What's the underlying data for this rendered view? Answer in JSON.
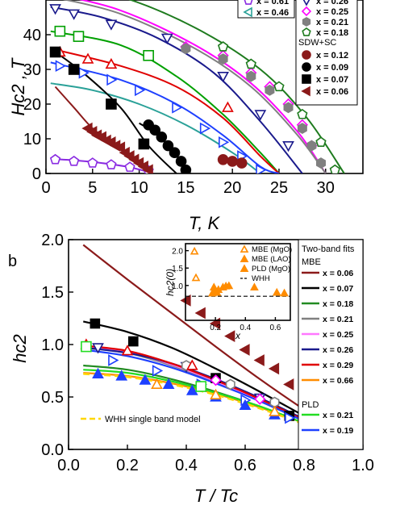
{
  "chart_data": [
    {
      "type": "scatter",
      "panel_label": "",
      "xlabel": "T, K",
      "ylabel": "Hc2 , T",
      "xlim": [
        0,
        34
      ],
      "ylim": [
        0,
        50
      ],
      "xticks": [
        0,
        5,
        10,
        15,
        20,
        25,
        30
      ],
      "yticks": [
        0,
        10,
        20,
        30,
        40
      ],
      "tick_labels_x": [
        "0",
        "5",
        "10",
        "15",
        "20",
        "25",
        "30"
      ],
      "tick_labels_y": [
        "0",
        "10",
        "20",
        "30",
        "40"
      ],
      "legend_group_label": "SDW+SC",
      "series": [
        {
          "name": "x = 0.61",
          "color": "#8a2be2",
          "marker": "pentagon-open",
          "x": [
            1,
            3,
            5,
            7,
            9,
            11
          ],
          "y": [
            4,
            3.5,
            3,
            2.5,
            1.8,
            0.8
          ],
          "fit_x": [
            0.5,
            3,
            6,
            9,
            11.5
          ],
          "fit_y": [
            4.2,
            3.8,
            3,
            1.8,
            0
          ]
        },
        {
          "name": "x = 0.46",
          "color": "#2aa198",
          "marker": "triangle-left-open",
          "x": [],
          "y": [],
          "fit_x": [
            0.5,
            5,
            10,
            15,
            20,
            23
          ],
          "fit_y": [
            26,
            24,
            20,
            14,
            6,
            0
          ]
        },
        {
          "name": "x = 0.26",
          "color": "#1a1a8c",
          "marker": "triangle-down-open",
          "x": [
            1,
            3,
            7,
            13,
            19,
            23,
            26
          ],
          "y": [
            47.5,
            46,
            43,
            39,
            28,
            17,
            8
          ],
          "fit_x": [
            0.5,
            6,
            12,
            18,
            23,
            27.5
          ],
          "fit_y": [
            48,
            45,
            39,
            29,
            15,
            0
          ]
        },
        {
          "name": "x = 0.25",
          "color": "#ff00ff",
          "marker": "diamond-open",
          "x": [
            15,
            19,
            22,
            24,
            26,
            27.5,
            28.5
          ],
          "y": [
            36.5,
            34,
            29,
            25,
            20,
            14,
            8
          ],
          "fit_x": [
            0.5,
            8,
            16,
            22,
            27,
            30
          ],
          "fit_y": [
            52,
            47,
            37,
            26,
            12,
            0
          ]
        },
        {
          "name": "x = 0.21",
          "color": "#808080",
          "marker": "hexagon",
          "x": [
            15,
            19,
            22,
            24,
            26,
            27.5,
            28.5,
            29.5
          ],
          "y": [
            36,
            33,
            28,
            24,
            19,
            13,
            8,
            3
          ],
          "fit_x": [
            0.5,
            8,
            16,
            22,
            27,
            30
          ],
          "fit_y": [
            51,
            46,
            36,
            25,
            11,
            0
          ]
        },
        {
          "name": "x = 0.18",
          "color": "#1e7b1e",
          "marker": "pentagon-open",
          "x": [
            19,
            22,
            25,
            27.5,
            29.5,
            31
          ],
          "y": [
            36.5,
            31.5,
            25,
            17,
            9,
            1
          ],
          "fit_x": [
            0.5,
            8,
            16,
            23,
            28,
            32
          ],
          "fit_y": [
            55,
            51,
            42,
            30,
            16,
            0
          ]
        },
        {
          "name": "",
          "color": "#00a000",
          "marker": "square-open",
          "x": [
            1.5,
            3.5,
            11
          ],
          "y": [
            41,
            39.5,
            34
          ],
          "fit_x": [
            0.5,
            8,
            14,
            19,
            23,
            25
          ],
          "fit_y": [
            41,
            37,
            28,
            17,
            6,
            0
          ]
        },
        {
          "name": "",
          "color": "#e00000",
          "marker": "triangle-up-open",
          "x": [
            1.5,
            4.5,
            7,
            19.5
          ],
          "y": [
            35,
            33,
            31.5,
            19
          ],
          "fit_x": [
            0.5,
            8,
            14,
            19,
            23,
            25
          ],
          "fit_y": [
            36,
            31,
            25,
            16,
            5,
            0
          ]
        },
        {
          "name": "",
          "color": "#1e40ff",
          "marker": "triangle-right-open",
          "x": [
            1.5,
            4,
            7,
            10,
            14,
            17,
            19,
            21,
            23
          ],
          "y": [
            31,
            29,
            27,
            24,
            19,
            13,
            9,
            5,
            1
          ],
          "fit_x": [
            0.5,
            8,
            14,
            19,
            23,
            25
          ],
          "fit_y": [
            32,
            27,
            20,
            11,
            2,
            0
          ]
        },
        {
          "name": "x = 0.12",
          "color": "#8b1a1a",
          "marker": "circle",
          "x": [
            19,
            20,
            21
          ],
          "y": [
            4,
            3.5,
            3
          ],
          "fit_x": [],
          "fit_y": []
        },
        {
          "name": "x = 0.09",
          "color": "#000000",
          "marker": "circle",
          "x": [
            11,
            11.7,
            12.4,
            13.1,
            13.8,
            14.5,
            15
          ],
          "y": [
            14,
            12.5,
            10.5,
            8,
            6,
            3.5,
            1
          ],
          "fit_x": [
            10,
            12,
            14,
            15.5
          ],
          "fit_y": [
            14.5,
            11,
            5,
            0
          ]
        },
        {
          "name": "x = 0.07",
          "color": "#000000",
          "marker": "square",
          "x": [
            1,
            3,
            7,
            10.5
          ],
          "y": [
            35,
            30,
            20,
            8.5
          ],
          "fit_x": [
            0.5,
            4,
            8,
            11,
            14
          ],
          "fit_y": [
            36,
            29,
            19,
            8,
            0
          ]
        },
        {
          "name": "x = 0.06",
          "color": "#8b1a1a",
          "marker": "triangle-left",
          "x": [
            4.5,
            5,
            5.5,
            6,
            6.5,
            7,
            7.5,
            8,
            8.5,
            9,
            9.5,
            10,
            10.5,
            11
          ],
          "y": [
            13,
            12,
            11,
            10.5,
            9.5,
            9,
            8,
            7.5,
            6,
            5,
            4,
            3,
            2,
            1
          ],
          "fit_x": [
            1,
            3,
            5,
            7,
            9,
            11.5
          ],
          "fit_y": [
            25,
            19,
            13,
            9,
            5,
            0
          ]
        }
      ]
    },
    {
      "type": "scatter",
      "panel_label": "b",
      "xlabel": "T / Tc",
      "ylabel": "hc2",
      "xlim": [
        0,
        1
      ],
      "ylim": [
        0,
        2
      ],
      "xticks": [
        0,
        0.2,
        0.4,
        0.6,
        0.8,
        1.0
      ],
      "yticks": [
        0,
        0.5,
        1.0,
        1.5,
        2.0
      ],
      "tick_labels_x": [
        "0.0",
        "0.2",
        "0.4",
        "0.6",
        "0.8",
        "1.0"
      ],
      "tick_labels_y": [
        "0.0",
        "0.5",
        "1.0",
        "1.5",
        "2.0"
      ],
      "legend_title": "Two-band fits",
      "legend_group_mbe": "MBE",
      "legend_group_pld": "PLD",
      "whh_label": "WHH single band model",
      "fits": [
        {
          "name": "x = 0.06",
          "color": "#8b1a1a",
          "x": [
            0.05,
            0.2,
            0.35,
            0.5,
            0.65,
            0.8,
            0.9,
            1.0
          ],
          "y": [
            1.95,
            1.62,
            1.3,
            0.98,
            0.67,
            0.38,
            0.2,
            0
          ]
        },
        {
          "name": "x = 0.07",
          "color": "#000000",
          "x": [
            0.05,
            0.2,
            0.35,
            0.5,
            0.65,
            0.8,
            0.9,
            1.0
          ],
          "y": [
            1.22,
            1.12,
            0.97,
            0.77,
            0.55,
            0.32,
            0.17,
            0
          ]
        },
        {
          "name": "x = 0.18",
          "color": "#228b22",
          "x": [
            0.05,
            0.2,
            0.35,
            0.5,
            0.65,
            0.8,
            0.9,
            1.0
          ],
          "y": [
            0.8,
            0.76,
            0.67,
            0.55,
            0.41,
            0.25,
            0.13,
            0
          ]
        },
        {
          "name": "x = 0.21",
          "color": "#808080",
          "x": [
            0.05,
            0.2,
            0.35,
            0.5,
            0.65,
            0.8,
            0.9,
            1.0
          ],
          "y": [
            0.97,
            0.92,
            0.8,
            0.64,
            0.46,
            0.27,
            0.14,
            0
          ]
        },
        {
          "name": "x = 0.25",
          "color": "#ff77ff",
          "x": [
            0.05,
            0.2,
            0.35,
            0.5,
            0.65,
            0.8,
            0.9,
            1.0
          ],
          "y": [
            0.99,
            0.93,
            0.81,
            0.65,
            0.47,
            0.28,
            0.14,
            0
          ]
        },
        {
          "name": "x = 0.26",
          "color": "#1a1a8c",
          "x": [
            0.05,
            0.2,
            0.35,
            0.5,
            0.65,
            0.8,
            0.9,
            1.0
          ],
          "y": [
            0.97,
            0.92,
            0.82,
            0.67,
            0.49,
            0.29,
            0.15,
            0
          ]
        },
        {
          "name": "x = 0.29",
          "color": "#e00000",
          "x": [
            0.05,
            0.2,
            0.35,
            0.5,
            0.65,
            0.8,
            0.9,
            1.0
          ],
          "y": [
            0.99,
            0.94,
            0.82,
            0.66,
            0.48,
            0.28,
            0.14,
            0
          ]
        },
        {
          "name": "x = 0.66",
          "color": "#ff8c00",
          "x": [
            0.05,
            0.2,
            0.35,
            0.5,
            0.65,
            0.8,
            0.9,
            1.0
          ],
          "y": [
            0.73,
            0.7,
            0.63,
            0.53,
            0.4,
            0.25,
            0.13,
            0
          ]
        },
        {
          "name": "x = 0.21",
          "color": "#22dd22",
          "group": "PLD",
          "x": [
            0.05,
            0.2,
            0.35,
            0.5,
            0.65,
            0.8,
            0.9,
            1.0
          ],
          "y": [
            0.76,
            0.73,
            0.65,
            0.54,
            0.41,
            0.25,
            0.13,
            0
          ]
        },
        {
          "name": "x = 0.19",
          "color": "#1e40ff",
          "group": "PLD",
          "x": [
            0.05,
            0.2,
            0.35,
            0.5,
            0.65,
            0.8,
            0.9,
            1.0
          ],
          "y": [
            0.95,
            0.89,
            0.78,
            0.63,
            0.46,
            0.27,
            0.14,
            0
          ]
        }
      ],
      "whh": {
        "color": "#ffd700",
        "x": [
          0.05,
          0.2,
          0.35,
          0.5,
          0.65,
          0.8,
          0.9,
          1.0
        ],
        "y": [
          0.72,
          0.69,
          0.62,
          0.52,
          0.39,
          0.24,
          0.12,
          0
        ]
      },
      "points": [
        {
          "color": "#8b1a1a",
          "marker": "triangle-left",
          "x": [
            0.6,
            0.65,
            0.7,
            0.75,
            0.8,
            0.85,
            0.9,
            0.95
          ],
          "y": [
            0.95,
            0.85,
            0.77,
            0.62,
            0.48,
            0.35,
            0.22,
            0.1
          ]
        },
        {
          "color": "#8b1a1a",
          "marker": "triangle-left",
          "x": [
            0.4,
            0.45,
            0.5,
            0.55
          ],
          "y": [
            1.42,
            1.3,
            1.2,
            1.08
          ]
        },
        {
          "color": "#000000",
          "marker": "square",
          "x": [
            0.09,
            0.22,
            0.5,
            0.75,
            0.95
          ],
          "y": [
            1.2,
            1.03,
            0.68,
            0.32,
            0.05
          ]
        },
        {
          "color": "#1e40ff",
          "marker": "triangle-right-open",
          "x": [
            0.15,
            0.3,
            0.45,
            0.6,
            0.75,
            0.9
          ],
          "y": [
            0.85,
            0.75,
            0.62,
            0.47,
            0.3,
            0.12
          ]
        },
        {
          "color": "#1e40ff",
          "marker": "triangle-up",
          "x": [
            0.1,
            0.18,
            0.26,
            0.34,
            0.42,
            0.5,
            0.6,
            0.7,
            0.8,
            0.9,
            0.97
          ],
          "y": [
            0.72,
            0.7,
            0.66,
            0.62,
            0.56,
            0.5,
            0.42,
            0.33,
            0.24,
            0.13,
            0.04
          ]
        },
        {
          "color": "#1a1a8c",
          "marker": "triangle-down-open",
          "x": [
            0.1,
            0.4,
            0.65,
            0.8,
            0.9
          ],
          "y": [
            0.97,
            0.79,
            0.49,
            0.31,
            0.17
          ]
        },
        {
          "color": "#808080",
          "marker": "hexagon-open",
          "x": [
            0.4,
            0.55,
            0.7,
            0.85
          ],
          "y": [
            0.8,
            0.62,
            0.45,
            0.23
          ]
        },
        {
          "color": "#ff00ff",
          "marker": "diamond-open",
          "x": [
            0.5,
            0.65,
            0.8,
            0.92
          ],
          "y": [
            0.66,
            0.48,
            0.28,
            0.13
          ]
        },
        {
          "color": "#e00000",
          "marker": "triangle-up-open",
          "x": [
            0.06,
            0.2,
            0.42
          ],
          "y": [
            1.0,
            0.94,
            0.8
          ]
        },
        {
          "color": "#22dd22",
          "marker": "square-open",
          "x": [
            0.06,
            0.45
          ],
          "y": [
            0.98,
            0.6
          ]
        },
        {
          "color": "#ff8c00",
          "marker": "triangle-up-open",
          "x": [
            0.3,
            0.5,
            0.7,
            0.85
          ],
          "y": [
            0.62,
            0.52,
            0.36,
            0.22
          ]
        }
      ],
      "inset": {
        "type": "scatter",
        "xlabel": "x",
        "ylabel": "hc2(0)",
        "xlim": [
          0,
          0.7
        ],
        "ylim": [
          0,
          2.2
        ],
        "xticks": [
          0.2,
          0.4,
          0.6
        ],
        "yticks": [
          1.0,
          1.5,
          2.0
        ],
        "tick_labels_x": [
          "0.2",
          "0.4",
          "0.6"
        ],
        "tick_labels_y": [
          "1.0",
          "1.5",
          "2.0"
        ],
        "legend": [
          "MBE (MgO)",
          "MBE (LAO)",
          "PLD (MgO)",
          "WHH"
        ],
        "whh_level": 0.69,
        "series": [
          {
            "name": "MBE (MgO)",
            "color": "#ff8c00",
            "marker": "triangle-up-open",
            "x": [
              0.06,
              0.07
            ],
            "y": [
              1.98,
              1.22
            ]
          },
          {
            "name": "MBE (LAO)",
            "color": "#ff8c00",
            "marker": "triangle-up",
            "x": [
              0.18,
              0.2,
              0.22,
              0.25,
              0.27,
              0.29,
              0.46,
              0.61,
              0.66
            ],
            "y": [
              0.78,
              0.83,
              0.88,
              0.95,
              0.98,
              0.99,
              0.95,
              0.8,
              0.78
            ]
          },
          {
            "name": "PLD (MgO)",
            "color": "#ff8c00",
            "marker": "triangle-up",
            "x": [
              0.19,
              0.21
            ],
            "y": [
              0.95,
              0.8
            ]
          }
        ]
      }
    }
  ]
}
